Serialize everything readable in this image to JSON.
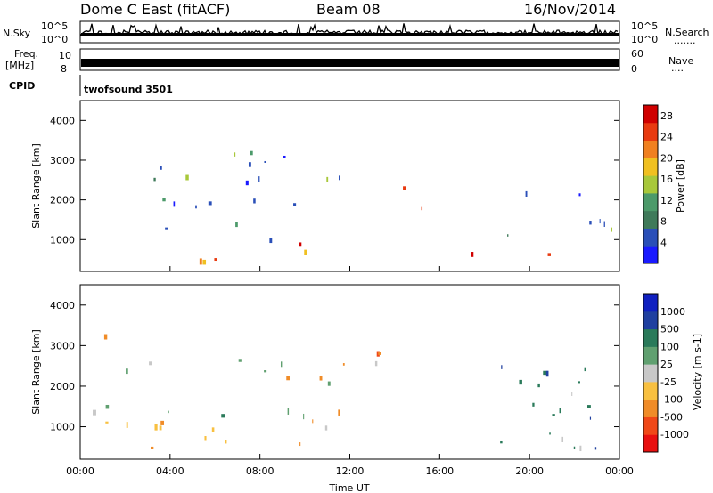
{
  "header": {
    "station": "Dome C East (fitACF)",
    "beam": "Beam 08",
    "date": "16/Nov/2014"
  },
  "side_labels": {
    "nsky": "N.Sky",
    "nsky_hi": "10^5",
    "nsky_lo": "10^0",
    "nsearch": "N.Search",
    "nsearch_hi": "10^5",
    "nsearch_lo": "10^0",
    "freq_line1": "Freq.",
    "freq_line2": "[MHz]",
    "freq_hi": "10",
    "freq_lo": "8",
    "nave": "Nave",
    "nave_hi": "60",
    "nave_lo": "0",
    "cpid": "CPID",
    "cpid_value": "twofsound 3501"
  },
  "chart_data": [
    {
      "type": "heatmap",
      "title": "",
      "ylabel": "Slant Range [km]",
      "xlabel": "Time UT",
      "xlim": [
        "00:00",
        "24:00"
      ],
      "ylim": [
        200,
        4500
      ],
      "x_ticks": [
        "00:00",
        "04:00",
        "08:00",
        "12:00",
        "16:00",
        "20:00",
        "00:00"
      ],
      "y_ticks": [
        1000,
        2000,
        3000,
        4000
      ],
      "colorbar": {
        "label": "Power [dB]",
        "ticks": [
          4,
          8,
          12,
          16,
          20,
          24,
          28
        ],
        "range": [
          0,
          30
        ],
        "colors": [
          "#1a1aff",
          "#2a4fb8",
          "#3f7a5a",
          "#4c9a6a",
          "#a8c83a",
          "#f0c020",
          "#f08020",
          "#e83a10",
          "#d00000"
        ]
      },
      "regions": [
        {
          "t0": 0.2,
          "t1": 8.0,
          "r0": 450,
          "r1": 700,
          "level": "high"
        },
        {
          "t0": 9.5,
          "t1": 11.5,
          "r0": 600,
          "r1": 1300,
          "level": "high"
        },
        {
          "t0": 13.7,
          "t1": 15.5,
          "r0": 1700,
          "r1": 2400,
          "level": "high"
        },
        {
          "t0": 16.3,
          "t1": 18.5,
          "r0": 400,
          "r1": 700,
          "level": "high"
        },
        {
          "t0": 19.5,
          "t1": 22.5,
          "r0": 400,
          "r1": 700,
          "level": "high"
        },
        {
          "t0": 0.5,
          "t1": 13.5,
          "r0": 1000,
          "r1": 3300,
          "level": "low"
        },
        {
          "t0": 18.5,
          "t1": 23.7,
          "r0": 900,
          "r1": 2700,
          "level": "low"
        }
      ]
    },
    {
      "type": "heatmap",
      "title": "",
      "ylabel": "Slant Range [km]",
      "xlabel": "Time UT",
      "xlim": [
        "00:00",
        "24:00"
      ],
      "ylim": [
        200,
        4500
      ],
      "x_ticks": [
        "00:00",
        "04:00",
        "08:00",
        "12:00",
        "16:00",
        "20:00",
        "00:00"
      ],
      "y_ticks": [
        1000,
        2000,
        3000,
        4000
      ],
      "colorbar": {
        "label": "Velocity [m s-1]",
        "ticks": [
          -1000,
          -500,
          -100,
          -25,
          25,
          100,
          500,
          1000
        ],
        "range": [
          -1200,
          1200
        ],
        "colors": [
          "#e81010",
          "#f04818",
          "#f08c28",
          "#f8c040",
          "#c8c8c8",
          "#60a070",
          "#2a7a5a",
          "#2040a0",
          "#1020c0"
        ]
      },
      "regions": [
        {
          "t0": 0.2,
          "t1": 11.0,
          "r0": 400,
          "r1": 1200,
          "level": "negative"
        },
        {
          "t0": 16.0,
          "t1": 23.8,
          "r0": 400,
          "r1": 900,
          "level": "positive"
        },
        {
          "t0": 0.5,
          "t1": 13.5,
          "r0": 1200,
          "r1": 3300,
          "level": "mixed"
        },
        {
          "t0": 18.5,
          "t1": 23.7,
          "r0": 900,
          "r1": 2700,
          "level": "positive"
        }
      ]
    }
  ]
}
